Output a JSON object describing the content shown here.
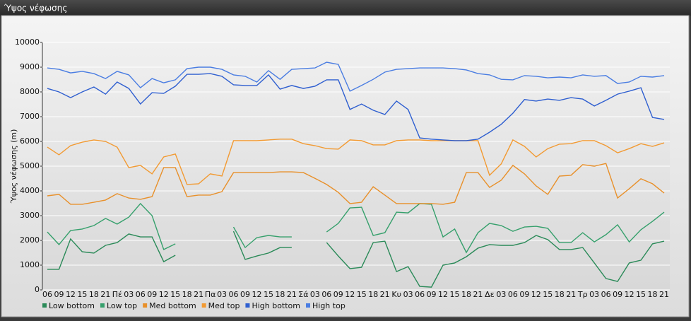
{
  "chart_data": {
    "type": "line",
    "title": "Ύψος νέφωσης",
    "ylabel": "Ύψος νέφωσης (m)",
    "categories": [
      "06",
      "09",
      "12",
      "15",
      "18",
      "21",
      "Πέ",
      "03",
      "06",
      "09",
      "12",
      "15",
      "18",
      "21",
      "Πα",
      "03",
      "06",
      "09",
      "12",
      "15",
      "18",
      "21",
      "Σά",
      "03",
      "06",
      "09",
      "12",
      "15",
      "18",
      "21",
      "Κυ",
      "03",
      "06",
      "09",
      "12",
      "15",
      "18",
      "21",
      "Δε",
      "03",
      "06",
      "09",
      "12",
      "15",
      "18",
      "21",
      "Τρ",
      "03",
      "06",
      "09",
      "12",
      "15",
      "18",
      "21"
    ],
    "ylim": [
      0,
      10000
    ],
    "yticks": [
      0,
      1000,
      2000,
      3000,
      4000,
      5000,
      6000,
      7000,
      8000,
      9000,
      10000
    ],
    "grid": true,
    "legend": "bottom",
    "series": [
      {
        "name": "Low bottom",
        "color": "#2a8a58",
        "values": [
          830,
          830,
          2060,
          1540,
          1490,
          1800,
          1910,
          2260,
          2140,
          2140,
          1140,
          1400,
          null,
          null,
          null,
          null,
          2370,
          1230,
          1370,
          1490,
          1710,
          1710,
          null,
          null,
          1910,
          1370,
          860,
          910,
          1910,
          1970,
          740,
          940,
          140,
          110,
          1000,
          1090,
          1340,
          1690,
          1830,
          1800,
          1800,
          1910,
          2200,
          2030,
          1630,
          1630,
          1710,
          1090,
          460,
          340,
          1090,
          1200,
          1860,
          1970
        ]
      },
      {
        "name": "Low top",
        "color": "#36a06c",
        "values": [
          2340,
          1830,
          2400,
          2460,
          2600,
          2890,
          2660,
          2940,
          3490,
          3000,
          1630,
          1860,
          null,
          null,
          null,
          null,
          2540,
          1710,
          2110,
          2200,
          2140,
          2140,
          null,
          null,
          2340,
          2690,
          3310,
          3340,
          2200,
          2310,
          3140,
          3110,
          3490,
          3460,
          2140,
          2460,
          1510,
          2310,
          2690,
          2600,
          2370,
          2540,
          2570,
          2490,
          1910,
          1910,
          2310,
          1940,
          2230,
          2630,
          1940,
          2430,
          2770,
          3140
        ]
      },
      {
        "name": "Med bottom",
        "color": "#e8902a",
        "values": [
          3800,
          3860,
          3460,
          3460,
          3540,
          3630,
          3890,
          3710,
          3660,
          3770,
          4940,
          4940,
          3770,
          3830,
          3830,
          3970,
          4740,
          4740,
          4740,
          4740,
          4770,
          4770,
          4740,
          4510,
          4260,
          3940,
          3490,
          3540,
          4170,
          3830,
          3490,
          3490,
          3490,
          3490,
          3460,
          3540,
          4740,
          4740,
          4140,
          4430,
          5030,
          4690,
          4200,
          3860,
          4600,
          4630,
          5060,
          5000,
          5110,
          3710,
          4090,
          4490,
          4290,
          3910
        ]
      },
      {
        "name": "Med top",
        "color": "#f29a32",
        "values": [
          5770,
          5460,
          5830,
          5970,
          6060,
          6000,
          5770,
          4940,
          5030,
          4690,
          5370,
          5490,
          4260,
          4290,
          4690,
          4600,
          6030,
          6030,
          6030,
          6060,
          6090,
          6090,
          5910,
          5830,
          5710,
          5690,
          6060,
          6030,
          5860,
          5860,
          6030,
          6060,
          6060,
          6030,
          6030,
          6030,
          6030,
          6030,
          4630,
          5090,
          6060,
          5800,
          5370,
          5710,
          5890,
          5910,
          6030,
          6030,
          5830,
          5540,
          5710,
          5910,
          5800,
          5940
        ]
      },
      {
        "name": "High bottom",
        "color": "#2f5fd0",
        "values": [
          8140,
          8000,
          7770,
          8000,
          8200,
          7910,
          8400,
          8140,
          7510,
          7970,
          7940,
          8230,
          8710,
          8710,
          8740,
          8630,
          8290,
          8260,
          8260,
          8690,
          8110,
          8260,
          8140,
          8230,
          8490,
          8490,
          7290,
          7510,
          7260,
          7090,
          7630,
          7290,
          6140,
          6090,
          6060,
          6030,
          6030,
          6090,
          6370,
          6690,
          7140,
          7690,
          7630,
          7710,
          7660,
          7770,
          7710,
          7430,
          7660,
          7910,
          8030,
          8170,
          6970,
          6890
        ]
      },
      {
        "name": "High top",
        "color": "#4a7de2",
        "values": [
          8970,
          8910,
          8770,
          8830,
          8740,
          8540,
          8830,
          8690,
          8170,
          8540,
          8370,
          8490,
          8940,
          9000,
          9000,
          8910,
          8690,
          8630,
          8400,
          8860,
          8510,
          8910,
          8940,
          8970,
          9200,
          9110,
          8030,
          8260,
          8510,
          8800,
          8910,
          8940,
          8970,
          8970,
          8970,
          8940,
          8890,
          8740,
          8690,
          8510,
          8490,
          8660,
          8630,
          8570,
          8600,
          8570,
          8690,
          8630,
          8660,
          8340,
          8400,
          8630,
          8600,
          8660
        ]
      }
    ]
  }
}
